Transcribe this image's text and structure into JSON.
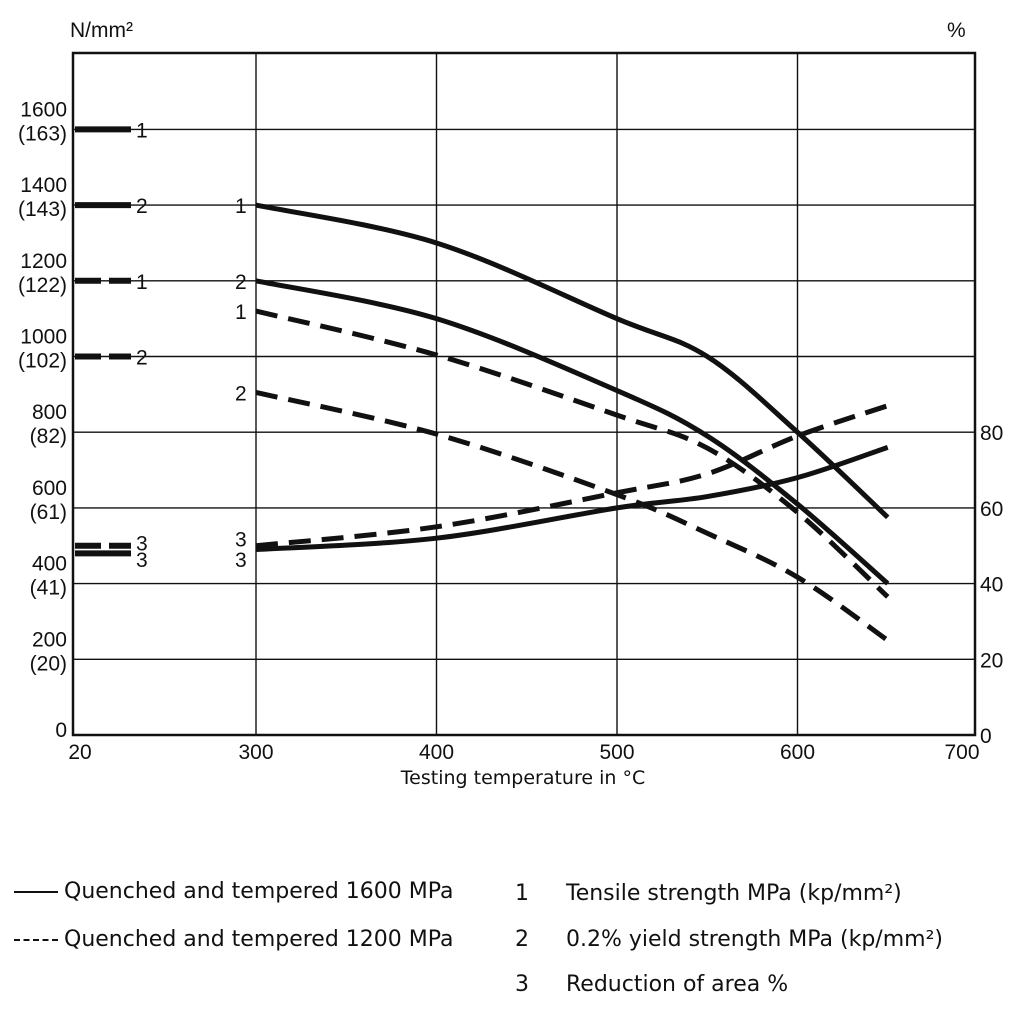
{
  "chart_data": {
    "type": "line",
    "left_axis_unit": "N/mm²",
    "right_axis_unit": "%",
    "xlabel": "Testing temperature in °C",
    "x_ticks": [
      "20",
      "300",
      "400",
      "500",
      "600",
      "700"
    ],
    "left_ticks": [
      {
        "value": 0,
        "label": "0",
        "sub": ""
      },
      {
        "value": 200,
        "label": "200",
        "sub": "(20)"
      },
      {
        "value": 400,
        "label": "400",
        "sub": "(41)"
      },
      {
        "value": 600,
        "label": "600",
        "sub": "(61)"
      },
      {
        "value": 800,
        "label": "800",
        "sub": "(82)"
      },
      {
        "value": 1000,
        "label": "1000",
        "sub": "(102)"
      },
      {
        "value": 1200,
        "label": "1200",
        "sub": "(122)"
      },
      {
        "value": 1400,
        "label": "1400",
        "sub": "(143)"
      },
      {
        "value": 1600,
        "label": "1600",
        "sub": "(163)"
      }
    ],
    "right_ticks": [
      "0",
      "20",
      "40",
      "60",
      "80"
    ],
    "ylim_left": [
      0,
      1800
    ],
    "ylim_right": [
      0,
      180
    ],
    "grid": true,
    "series": [
      {
        "label": "1",
        "treatment": "Quenched and tempered 1600 MPa",
        "style": "solid",
        "axis": "left",
        "value_at_20": 1600,
        "points": [
          [
            300,
            1400
          ],
          [
            400,
            1300
          ],
          [
            500,
            1100
          ],
          [
            550,
            1000
          ],
          [
            600,
            800
          ],
          [
            650,
            575
          ]
        ]
      },
      {
        "label": "2",
        "treatment": "Quenched and tempered 1600 MPa",
        "style": "solid",
        "axis": "left",
        "value_at_20": 1400,
        "points": [
          [
            300,
            1200
          ],
          [
            400,
            1100
          ],
          [
            500,
            910
          ],
          [
            550,
            790
          ],
          [
            600,
            610
          ],
          [
            650,
            400
          ]
        ]
      },
      {
        "label": "1",
        "treatment": "Quenched and tempered 1200 MPa",
        "style": "dashed",
        "axis": "left",
        "value_at_20": 1200,
        "points": [
          [
            300,
            1120
          ],
          [
            400,
            1004
          ],
          [
            500,
            845
          ],
          [
            550,
            758
          ],
          [
            600,
            588
          ],
          [
            650,
            365
          ]
        ]
      },
      {
        "label": "2",
        "treatment": "Quenched and tempered 1200 MPa",
        "style": "dashed",
        "axis": "left",
        "value_at_20": 1000,
        "points": [
          [
            300,
            905
          ],
          [
            400,
            795
          ],
          [
            500,
            635
          ],
          [
            550,
            533
          ],
          [
            600,
            417
          ],
          [
            650,
            250
          ]
        ]
      },
      {
        "label": "3",
        "treatment": "Quenched and tempered 1600 MPa",
        "style": "solid",
        "axis": "right",
        "value_at_20": 48,
        "points": [
          [
            300,
            49
          ],
          [
            400,
            52
          ],
          [
            500,
            60
          ],
          [
            550,
            63
          ],
          [
            600,
            68
          ],
          [
            650,
            76
          ]
        ]
      },
      {
        "label": "3",
        "treatment": "Quenched and tempered 1200 MPa",
        "style": "dashed",
        "axis": "right",
        "value_at_20": 50,
        "points": [
          [
            300,
            50
          ],
          [
            400,
            55
          ],
          [
            500,
            64
          ],
          [
            550,
            69
          ],
          [
            600,
            79
          ],
          [
            650,
            87
          ]
        ]
      }
    ]
  },
  "legend": {
    "styles": [
      {
        "style": "solid",
        "text": "Quenched and tempered 1600 MPa"
      },
      {
        "style": "dashed",
        "text": "Quenched and tempered 1200 MPa"
      }
    ],
    "codes": [
      {
        "num": "1",
        "text": "Tensile strength MPa (kp/mm²)"
      },
      {
        "num": "2",
        "text": "0.2% yield strength MPa (kp/mm²)"
      },
      {
        "num": "3",
        "text": "Reduction of area %"
      }
    ]
  }
}
